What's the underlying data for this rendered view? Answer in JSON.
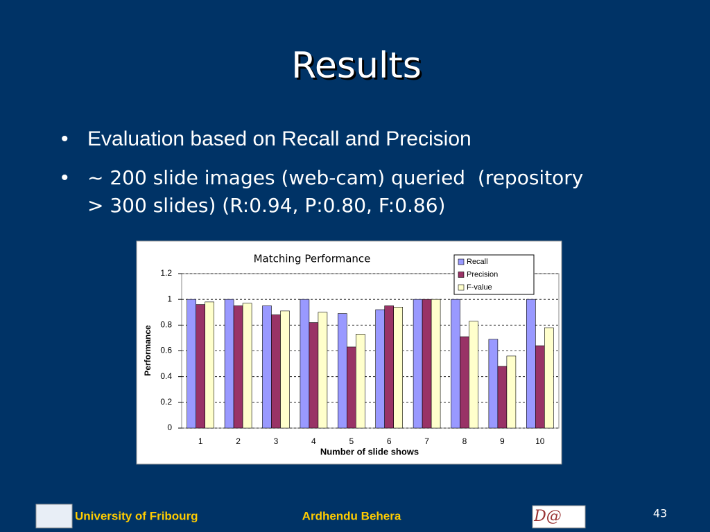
{
  "slide": {
    "title": "Results",
    "bullets": [
      "Evaluation based on Recall and Precision"
    ],
    "bullet_lines": [
      "~ 200 slide images (web-cam) queried  (repository",
      "> 300 slides) (R:0.94, P:0.80, F:0.86)"
    ],
    "footer": {
      "left": "University of Fribourg",
      "center": "Ardhendu Behera",
      "page": "43",
      "logo": "D@"
    }
  },
  "chart_data": {
    "type": "bar",
    "title": "Matching Performance",
    "x_label": "Number of slide shows",
    "y_label": "Performance",
    "categories": [
      "1",
      "2",
      "3",
      "4",
      "5",
      "6",
      "7",
      "8",
      "9",
      "10"
    ],
    "series": [
      {
        "name": "Recall",
        "color": "#9999ff",
        "values": [
          1,
          1,
          0.95,
          1,
          0.89,
          0.92,
          1,
          1,
          0.69,
          1
        ]
      },
      {
        "name": "Precision",
        "color": "#993366",
        "values": [
          0.96,
          0.95,
          0.88,
          0.82,
          0.63,
          0.95,
          1,
          0.71,
          0.48,
          0.64
        ]
      },
      {
        "name": "F-value",
        "color": "#ffffcc",
        "values": [
          0.98,
          0.97,
          0.91,
          0.9,
          0.73,
          0.94,
          1,
          0.83,
          0.56,
          0.78
        ]
      }
    ],
    "ylim": [
      0,
      1.2
    ],
    "yticks": [
      0,
      0.2,
      0.4,
      0.6,
      0.8,
      1,
      1.2
    ],
    "grid": true,
    "legend": "upper right"
  }
}
